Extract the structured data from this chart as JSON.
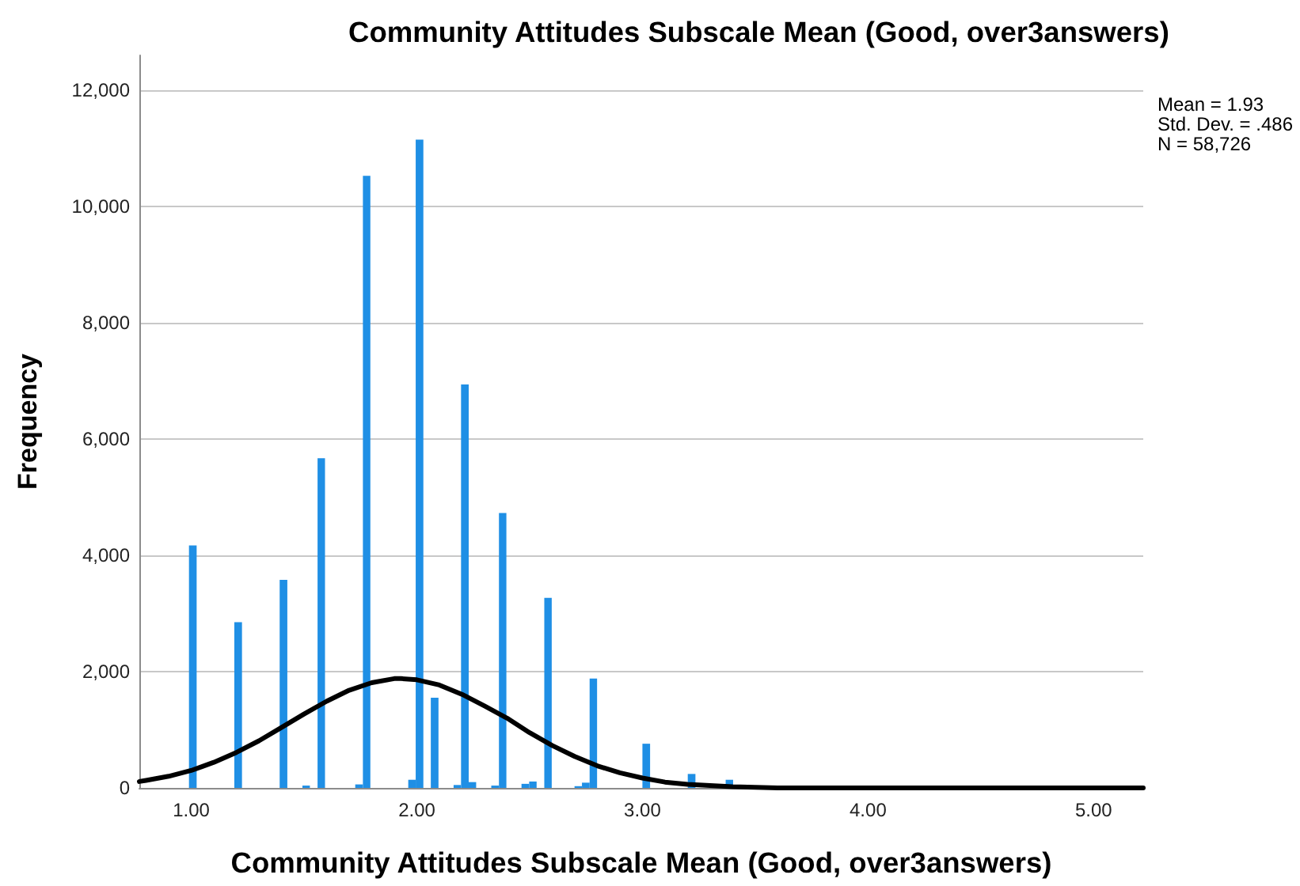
{
  "chart_data": {
    "type": "histogram",
    "title": "Community Attitudes Subscale Mean (Good, over3answers)",
    "xlabel": "Community Attitudes Subscale Mean (Good, over3answers)",
    "ylabel": "Frequency",
    "series": [
      {
        "color": "#1f8fe5",
        "bins": [
          0.99,
          1.024,
          1.191,
          1.225,
          1.392,
          1.426,
          1.493,
          1.526,
          1.56,
          1.593,
          1.727,
          1.761,
          1.794,
          1.962,
          1.995,
          2.029,
          2.062,
          2.096,
          2.163,
          2.196,
          2.23,
          2.263,
          2.33,
          2.364,
          2.397,
          2.464,
          2.498,
          2.531,
          2.565,
          2.598,
          2.699,
          2.732,
          2.766,
          2.799,
          3.0,
          3.034,
          3.201,
          3.235,
          3.369,
          3.402
        ],
        "values": [
          4170,
          0,
          2850,
          0,
          3580,
          0,
          40,
          0,
          5670,
          0,
          60,
          10530,
          0,
          140,
          11150,
          0,
          1550,
          0,
          50,
          6940,
          100,
          0,
          40,
          4730,
          0,
          70,
          110,
          0,
          3270,
          0,
          30,
          90,
          1880,
          0,
          760,
          0,
          240,
          0,
          140
        ]
      },
      {
        "type": "line",
        "color": "#000000",
        "x": [
          0.77,
          0.8,
          0.9,
          1.0,
          1.1,
          1.2,
          1.3,
          1.4,
          1.5,
          1.6,
          1.7,
          1.8,
          1.9,
          1.93,
          2.0,
          2.1,
          2.2,
          2.3,
          2.4,
          2.5,
          2.6,
          2.7,
          2.8,
          2.9,
          3.0,
          3.1,
          3.2,
          3.3,
          3.4,
          3.5,
          3.6,
          3.8,
          4.0,
          4.5,
          5.0,
          5.22
        ],
        "values": [
          110,
          130,
          200,
          300,
          440,
          610,
          810,
          1040,
          1270,
          1490,
          1680,
          1810,
          1880,
          1880,
          1860,
          1770,
          1610,
          1410,
          1200,
          950,
          730,
          540,
          380,
          260,
          170,
          100,
          60,
          40,
          20,
          10,
          0,
          0,
          0,
          0,
          0,
          0
        ]
      }
    ],
    "xlim": [
      0.77,
      5.22
    ],
    "ylim": [
      0,
      12600
    ],
    "xticks": [
      {
        "value": 1,
        "label": "1.00"
      },
      {
        "value": 2,
        "label": "2.00"
      },
      {
        "value": 3,
        "label": "3.00"
      },
      {
        "value": 4,
        "label": "4.00"
      },
      {
        "value": 5,
        "label": "5.00"
      }
    ],
    "yticks": [
      0,
      {
        "value": 2000,
        "label": "2,000"
      },
      {
        "value": 4000,
        "label": "4,000"
      },
      {
        "value": 6000,
        "label": "6,000"
      },
      {
        "value": 8000,
        "label": "8,000"
      },
      {
        "value": 10000,
        "label": "10,000"
      },
      {
        "value": 12000,
        "label": "12,000"
      }
    ],
    "grid": "y",
    "annotations": [
      "Mean = 1.93",
      "Std. Dev. = .486",
      "N = 58,726"
    ]
  }
}
